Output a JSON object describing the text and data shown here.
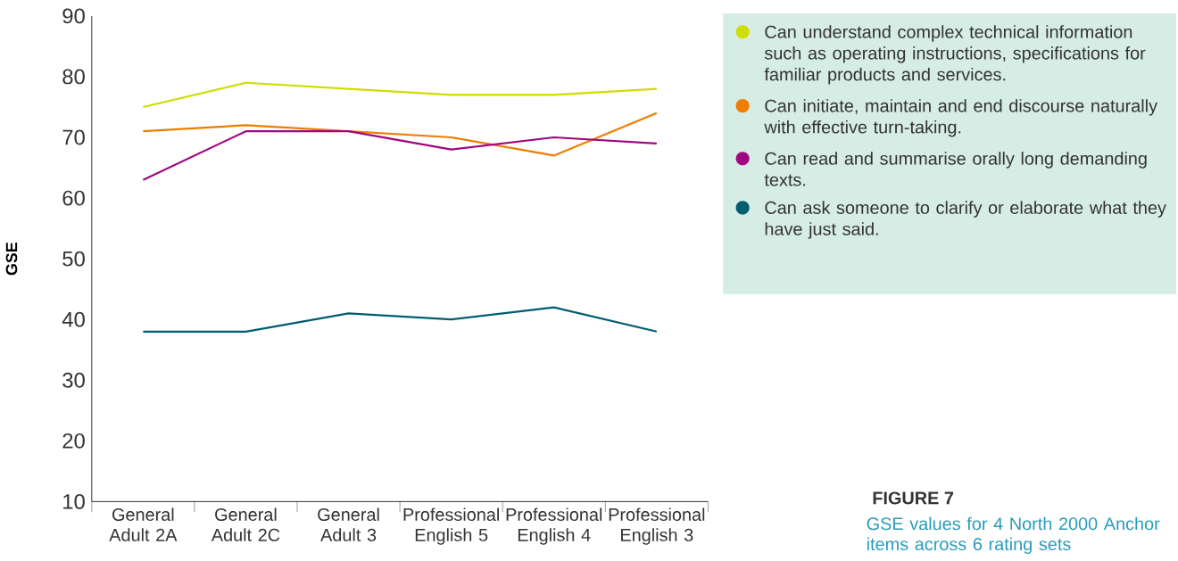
{
  "chart_data": {
    "type": "line",
    "title": "FIGURE 7",
    "subtitle": "GSE values for 4 North 2000 Anchor items across 6 rating sets",
    "ylabel": "GSE",
    "categories": [
      "General Adult 2A",
      "General Adult 2C",
      "General Adult 3",
      "Professional English 5",
      "Professional English 4",
      "Professional English 3"
    ],
    "series": [
      {
        "name": "Can understand complex technical information such as operating instructions, specifications for familiar products and services.",
        "color": "#cfdd00",
        "values": [
          75,
          79,
          78,
          77,
          77,
          78
        ]
      },
      {
        "name": "Can initiate, maintain and end discourse naturally with effective turn-taking.",
        "color": "#ee7d00",
        "values": [
          71,
          72,
          71,
          70,
          67,
          74
        ]
      },
      {
        "name": "Can read and summarise orally long demanding texts.",
        "color": "#a1077f",
        "values": [
          63,
          71,
          71,
          68,
          70,
          69
        ]
      },
      {
        "name": "Can ask someone to clarify or elaborate what they have just said.",
        "color": "#005e70",
        "values": [
          38,
          38,
          41,
          40,
          42,
          38
        ]
      }
    ],
    "ylim": [
      10,
      90
    ],
    "yticks": [
      10,
      20,
      30,
      40,
      50,
      60,
      70,
      80,
      90
    ],
    "legend": "top right"
  }
}
